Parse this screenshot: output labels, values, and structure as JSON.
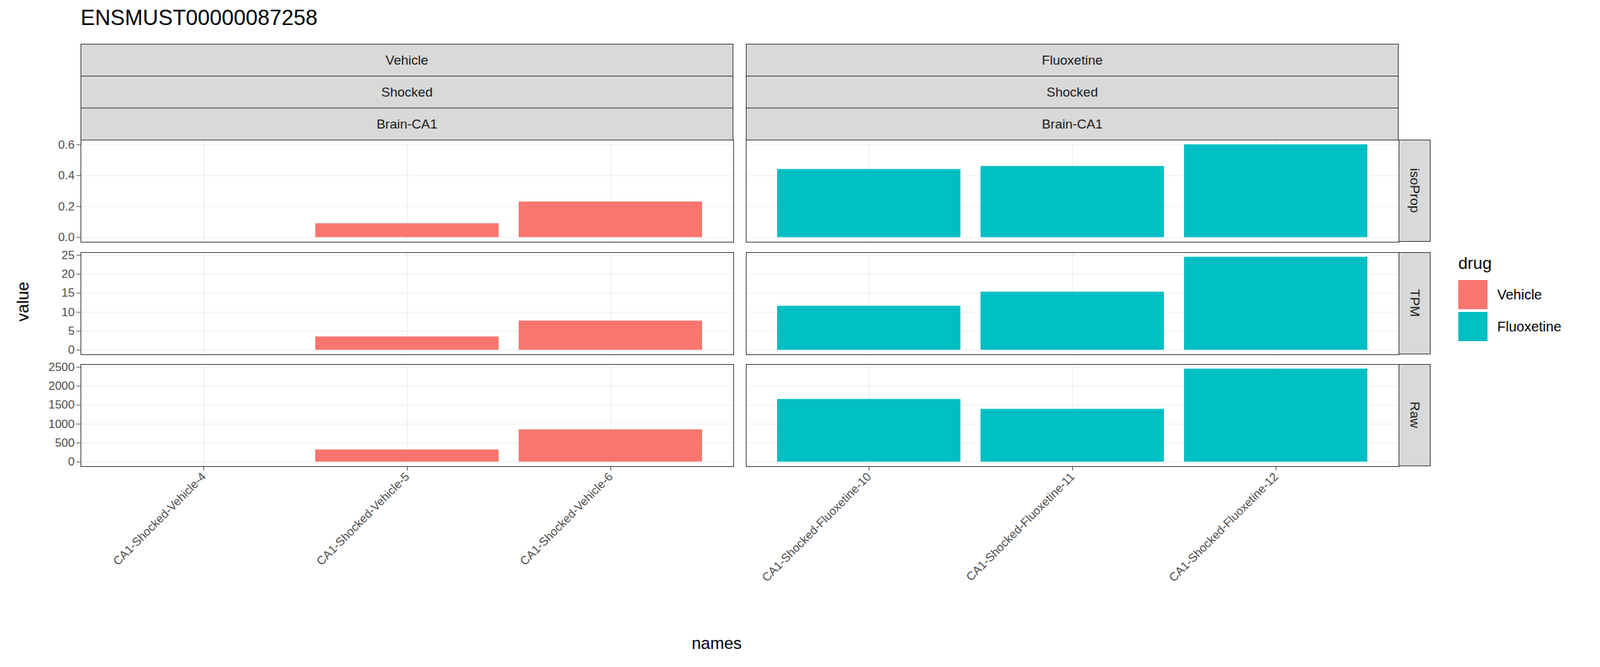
{
  "chart_data": {
    "type": "bar",
    "title": "ENSMUST00000087258",
    "x_label": "names",
    "y_label": "value",
    "legend_title": "drug",
    "grid": true,
    "groups": [
      {
        "name": "Vehicle",
        "color": "#F8766D",
        "strips": [
          "Vehicle",
          "Shocked",
          "Brain-CA1"
        ],
        "categories": [
          "CA1-Shocked-Vehicle-4",
          "CA1-Shocked-Vehicle-5",
          "CA1-Shocked-Vehicle-6"
        ]
      },
      {
        "name": "Fluoxetine",
        "color": "#00BFC4",
        "strips": [
          "Fluoxetine",
          "Shocked",
          "Brain-CA1"
        ],
        "categories": [
          "CA1-Shocked-Fluoxetine-10",
          "CA1-Shocked-Fluoxetine-11",
          "CA1-Shocked-Fluoxetine-12"
        ]
      }
    ],
    "panels": [
      {
        "name": "isoProp",
        "ylim": [
          -0.03,
          0.63
        ],
        "yticks": [
          {
            "value": 0,
            "label": "0.0"
          },
          0.2,
          0.4,
          0.6
        ],
        "values": [
          [
            0,
            0.09,
            0.23
          ],
          [
            0.44,
            0.46,
            0.6
          ]
        ]
      },
      {
        "name": "TPM",
        "ylim": [
          -1.2,
          25.7
        ],
        "yticks": [
          0,
          5,
          10,
          15,
          20,
          25
        ],
        "values": [
          [
            0,
            3.5,
            7.7
          ],
          [
            11.6,
            15.3,
            24.5
          ]
        ]
      },
      {
        "name": "Raw",
        "ylim": [
          -120,
          2570
        ],
        "yticks": [
          0,
          500,
          1000,
          1500,
          2000,
          2500
        ],
        "values": [
          [
            0,
            320,
            850
          ],
          [
            1650,
            1390,
            2450
          ]
        ]
      }
    ]
  }
}
